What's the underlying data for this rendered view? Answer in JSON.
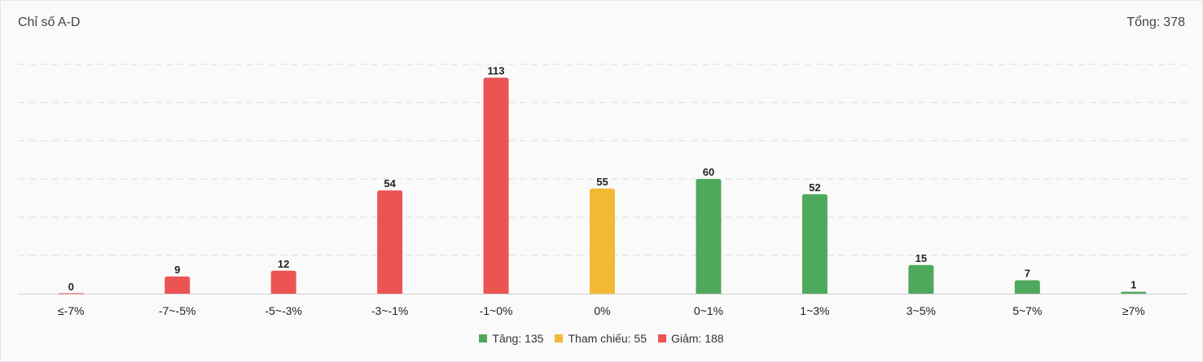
{
  "header": {
    "title": "Chỉ số A-D",
    "total_label": "Tổng:",
    "total_value": "378"
  },
  "colors": {
    "up": "#4fa95c",
    "reference": "#f2b935",
    "down": "#ec5454"
  },
  "legend": [
    {
      "label": "Tăng: 135",
      "color": "#4fa95c"
    },
    {
      "label": "Tham chiếu: 55",
      "color": "#f2b935"
    },
    {
      "label": "Giảm: 188",
      "color": "#ec5454"
    }
  ],
  "chart_data": {
    "type": "bar",
    "categories": [
      "≤-7%",
      "-7~-5%",
      "-5~-3%",
      "-3~-1%",
      "-1~0%",
      "0%",
      "0~1%",
      "1~3%",
      "3~5%",
      "5~7%",
      "≥7%"
    ],
    "values": [
      0,
      9,
      12,
      54,
      113,
      55,
      60,
      52,
      15,
      7,
      1
    ],
    "bar_colors": [
      "#ec5454",
      "#ec5454",
      "#ec5454",
      "#ec5454",
      "#ec5454",
      "#f2b935",
      "#4fa95c",
      "#4fa95c",
      "#4fa95c",
      "#4fa95c",
      "#4fa95c"
    ],
    "ylim": [
      0,
      120
    ],
    "grid": true,
    "legend_position": "bottom-center"
  }
}
